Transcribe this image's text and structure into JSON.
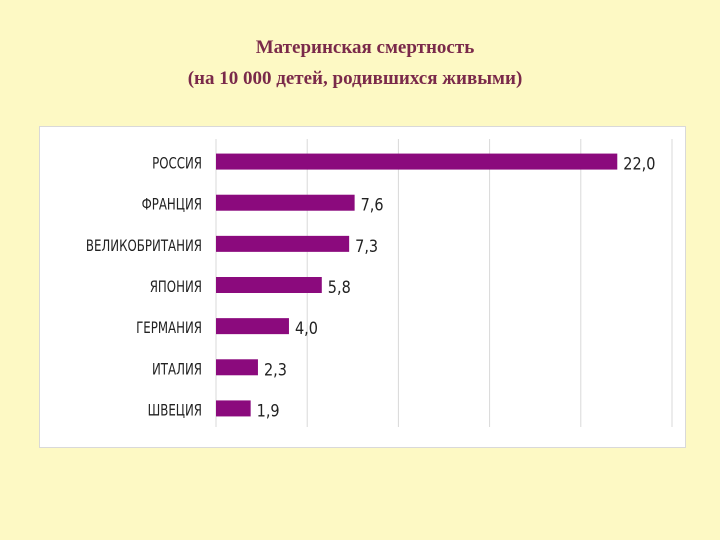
{
  "title": {
    "line1": "Материнская смертность",
    "line2": "(на 10 000 детей, родившихся живыми)"
  },
  "colors": {
    "background": "#fdf9c4",
    "title": "#7a2a4a",
    "bar": "#8b0a7d",
    "gridline": "#d9d9d9"
  },
  "chart_data": {
    "type": "bar",
    "orientation": "horizontal",
    "categories": [
      "РОССИЯ",
      "ФРАНЦИЯ",
      "ВЕЛИКОБРИТАНИЯ",
      "ЯПОНИЯ",
      "ГЕРМАНИЯ",
      "ИТАЛИЯ",
      "ШВЕЦИЯ"
    ],
    "values": [
      22.0,
      7.6,
      7.3,
      5.8,
      4.0,
      2.3,
      1.9
    ],
    "value_labels": [
      "22,0",
      "7,6",
      "7,3",
      "5,8",
      "4,0",
      "2,3",
      "1,9"
    ],
    "xlim": [
      0,
      25
    ],
    "grid_step": 5,
    "grid": true,
    "legend": "none",
    "xlabel": "",
    "ylabel": ""
  }
}
